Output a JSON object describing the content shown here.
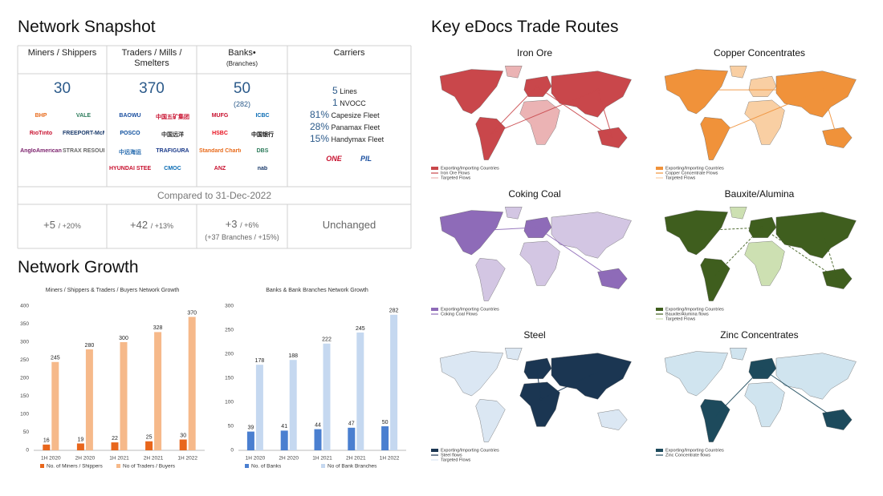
{
  "snapshot": {
    "title": "Network Snapshot",
    "columns": [
      {
        "header": "Miners / Shippers",
        "count": 30,
        "logos": [
          "BHP",
          "VALE",
          "RioTinto",
          "FREEPORT-McMoRan",
          "AngloAmerican",
          "STRAX RESOURCES"
        ]
      },
      {
        "header": "Traders / Mills / Smelters",
        "count": 370,
        "logos": [
          "BAOWU",
          "中国五矿集团",
          "POSCO",
          "中国远洋",
          "中远海运",
          "TRAFIGURA",
          "HYUNDAI STEEL",
          "CMOC"
        ]
      },
      {
        "header": "Banks•",
        "header_note": "(Branches)",
        "count": 50,
        "count_note": "(282)",
        "logos": [
          "MUFG",
          "ICBC",
          "HSBC",
          "中国银行",
          "Standard Chartered",
          "DBS",
          "ANZ",
          "nab"
        ]
      },
      {
        "header": "Carriers",
        "fleet": [
          {
            "value": "5",
            "label": "Lines"
          },
          {
            "value": "1",
            "label": "NVOCC"
          },
          {
            "value": "81%",
            "label": "Capesize Fleet"
          },
          {
            "value": "28%",
            "label": "Panamax Fleet"
          },
          {
            "value": "15%",
            "label": "Handymax Fleet"
          }
        ],
        "logos": [
          "ONE",
          "PIL"
        ]
      }
    ],
    "compared": "Compared to 31-Dec-2022",
    "changes": [
      {
        "value": "+5",
        "pct": "/ +20%"
      },
      {
        "value": "+42",
        "pct": "/ +13%"
      },
      {
        "value": "+3",
        "pct": "/ +6%",
        "note": "(+37 Branches / +15%)"
      },
      {
        "value": "Unchanged"
      }
    ]
  },
  "growth": {
    "title": "Network Growth"
  },
  "chart_data": [
    {
      "type": "bar",
      "title": "Miners / Shippers & Traders / Buyers Network Growth",
      "categories": [
        "1H 2020",
        "2H 2020",
        "1H 2021",
        "2H 2021",
        "1H 2022"
      ],
      "series": [
        {
          "name": "No. of Miners / Shippers",
          "color": "#e8661c",
          "values": [
            16,
            19,
            22,
            25,
            30
          ]
        },
        {
          "name": "No of Traders / Buyers",
          "color": "#f6b98a",
          "values": [
            245,
            280,
            300,
            328,
            370
          ]
        }
      ],
      "ylim": [
        0,
        400
      ],
      "yticks": [
        0,
        50,
        100,
        150,
        200,
        250,
        300,
        350,
        400
      ],
      "grid": false
    },
    {
      "type": "bar",
      "title": "Banks & Bank Branches Network Growth",
      "categories": [
        "1H 2020",
        "2H 2020",
        "1H 2021",
        "2H 2021",
        "1H 2022"
      ],
      "series": [
        {
          "name": "No. of Banks",
          "color": "#4a7fd0",
          "values": [
            39,
            41,
            44,
            47,
            50
          ]
        },
        {
          "name": "No of Bank Branches",
          "color": "#c5d8f0",
          "values": [
            178,
            188,
            222,
            245,
            282
          ]
        }
      ],
      "ylim": [
        0,
        300
      ],
      "yticks": [
        0,
        50,
        100,
        150,
        200,
        250,
        300
      ],
      "grid": false
    }
  ],
  "routes": {
    "title": "Key eDocs Trade Routes",
    "maps": [
      {
        "title": "Iron Ore",
        "color": "#c9474b",
        "base_color": "#ebb3b4",
        "legend": [
          "Exporting/Importing Countries",
          "Iron Ore Flows",
          "Targeted Flows"
        ]
      },
      {
        "title": "Copper Concentrates",
        "color": "#f0923a",
        "base_color": "#f9cfa3",
        "legend": [
          "Exporting/Importing Countries",
          "Copper Concentrate Flows",
          "Targeted Flows"
        ]
      },
      {
        "title": "Coking Coal",
        "color": "#8e6bb8",
        "base_color": "#d3c6e3",
        "legend": [
          "Exporting/Importing Countries",
          "Coking Coal Flows"
        ]
      },
      {
        "title": "Bauxite/Alumina",
        "color": "#3f5e1e",
        "base_color": "#cde0b2",
        "legend": [
          "Exporting/Importing Countries",
          "Bauxite/Alumina flows",
          "Targeted Flows"
        ]
      },
      {
        "title": "Steel",
        "color": "#1b3652",
        "base_color": "#dbe7f3",
        "legend": [
          "Exporting/Importing Countries",
          "Steel flows",
          "Targeted Flows"
        ]
      },
      {
        "title": "Zinc Concentrates",
        "color": "#1d4a5c",
        "base_color": "#d0e4ef",
        "legend": [
          "Exporting/Importing Countries",
          "Zinc Concentrate flows"
        ]
      }
    ]
  }
}
